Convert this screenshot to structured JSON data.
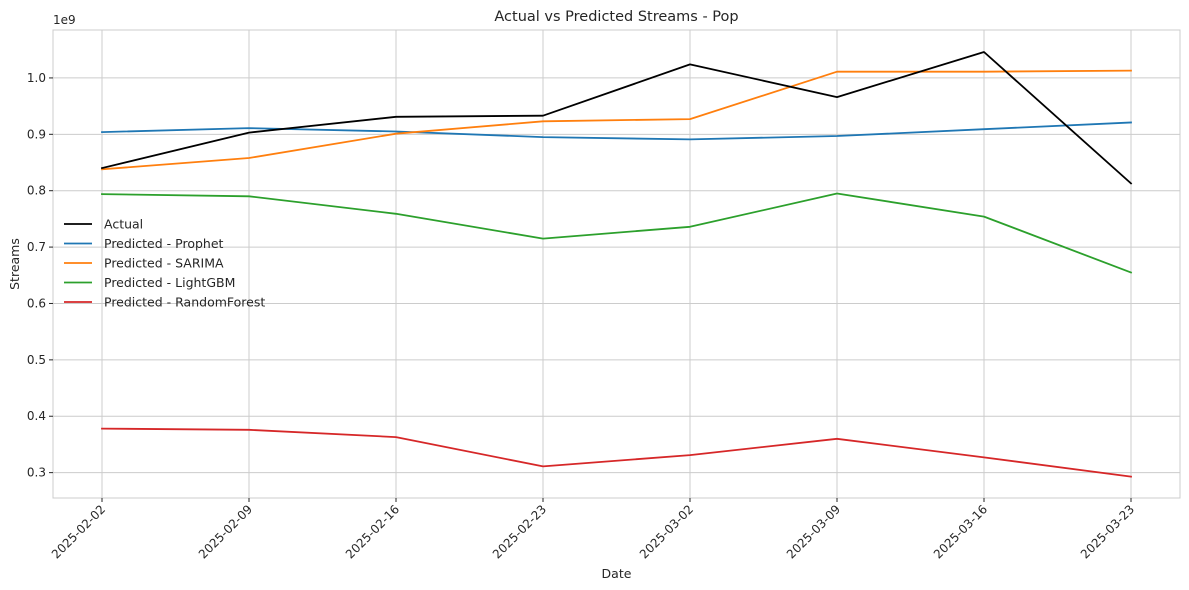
{
  "chart_data": {
    "type": "line",
    "title": "Actual vs Predicted Streams - Pop",
    "xlabel": "Date",
    "ylabel": "Streams",
    "y_offset_label": "1e9",
    "y_scale_factor": 1000000000,
    "categories": [
      "2025-02-02",
      "2025-02-09",
      "2025-02-16",
      "2025-02-23",
      "2025-03-02",
      "2025-03-09",
      "2025-03-16",
      "2025-03-23"
    ],
    "ylim": [
      255000000,
      1085000000
    ],
    "yticks": [
      300000000,
      400000000,
      500000000,
      600000000,
      700000000,
      800000000,
      900000000,
      1000000000
    ],
    "ytick_labels": [
      "0.3",
      "0.4",
      "0.5",
      "0.6",
      "0.7",
      "0.8",
      "0.9",
      "1.0"
    ],
    "grid": true,
    "legend_position": "center-left",
    "series": [
      {
        "name": "Actual",
        "color": "#000000",
        "values": [
          840000000,
          903000000,
          931000000,
          933000000,
          1024000000,
          966000000,
          1046000000,
          813000000
        ]
      },
      {
        "name": "Predicted - Prophet",
        "color": "#1f77b4",
        "values": [
          904000000,
          911000000,
          905000000,
          895000000,
          891000000,
          897000000,
          909000000,
          921000000
        ]
      },
      {
        "name": "Predicted - SARIMA",
        "color": "#ff7f0e",
        "values": [
          838000000,
          858000000,
          901000000,
          923000000,
          927000000,
          1011000000,
          1011000000,
          1013000000
        ]
      },
      {
        "name": "Predicted - LightGBM",
        "color": "#2ca02c",
        "values": [
          794000000,
          790000000,
          759000000,
          715000000,
          736000000,
          795000000,
          754000000,
          655000000
        ]
      },
      {
        "name": "Predicted - RandomForest",
        "color": "#d62728",
        "values": [
          378000000,
          376000000,
          363000000,
          311000000,
          331000000,
          360000000,
          327000000,
          293000000
        ]
      }
    ]
  }
}
